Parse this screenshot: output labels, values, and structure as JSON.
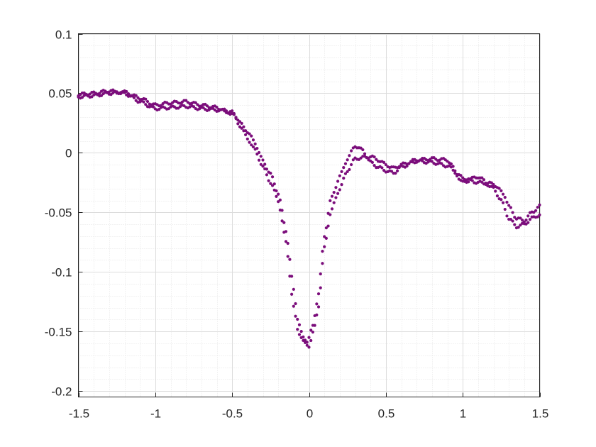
{
  "chart_data": {
    "type": "scatter",
    "title": "",
    "xlabel": "",
    "ylabel": "",
    "xlim": [
      -1.5,
      1.5
    ],
    "ylim": [
      -0.205,
      0.1
    ],
    "x_ticks": [
      -1.5,
      -1,
      -0.5,
      0,
      0.5,
      1,
      1.5
    ],
    "x_tick_labels": [
      "-1.5",
      "-1",
      "-0.5",
      "0",
      "0.5",
      "1",
      "1.5"
    ],
    "y_ticks": [
      0.1,
      0.05,
      0,
      -0.05,
      -0.1,
      -0.15,
      -0.2
    ],
    "y_tick_labels": [
      "0.1",
      "0.05",
      "0",
      "-0.05",
      "-0.1",
      "-0.15",
      "-0.2"
    ],
    "x_minor_step": 0.1,
    "y_minor_step": 0.01,
    "grid": true,
    "marker_color": "#7b0d7b",
    "series": [
      {
        "curves": [
          [
            [
              -1.5,
              0.049
            ],
            [
              -1.4,
              0.05
            ],
            [
              -1.3,
              0.052
            ],
            [
              -1.2,
              0.05
            ],
            [
              -1.1,
              0.043
            ],
            [
              -1.0,
              0.037
            ],
            [
              -0.9,
              0.038
            ],
            [
              -0.8,
              0.039
            ],
            [
              -0.7,
              0.037
            ],
            [
              -0.6,
              0.036
            ],
            [
              -0.5,
              0.034
            ],
            [
              -0.4,
              0.018
            ],
            [
              -0.35,
              0.008
            ],
            [
              -0.3,
              -0.007
            ],
            [
              -0.25,
              -0.018
            ],
            [
              -0.2,
              -0.034
            ],
            [
              -0.15,
              -0.065
            ],
            [
              -0.1,
              -0.115
            ],
            [
              -0.07,
              -0.142
            ],
            [
              -0.04,
              -0.155
            ],
            [
              -0.01,
              -0.158
            ],
            [
              0.02,
              -0.148
            ],
            [
              0.06,
              -0.12
            ],
            [
              0.1,
              -0.07
            ],
            [
              0.14,
              -0.04
            ],
            [
              0.2,
              -0.02
            ],
            [
              0.25,
              -0.005
            ],
            [
              0.3,
              0.006
            ],
            [
              0.35,
              0.002
            ],
            [
              0.4,
              -0.008
            ],
            [
              0.45,
              -0.012
            ],
            [
              0.5,
              -0.015
            ],
            [
              0.55,
              -0.017
            ],
            [
              0.6,
              -0.012
            ],
            [
              0.7,
              -0.007
            ],
            [
              0.8,
              -0.008
            ],
            [
              0.9,
              -0.011
            ],
            [
              1.0,
              -0.021
            ],
            [
              1.1,
              -0.025
            ],
            [
              1.2,
              -0.026
            ],
            [
              1.27,
              -0.035
            ],
            [
              1.3,
              -0.045
            ],
            [
              1.35,
              -0.055
            ],
            [
              1.4,
              -0.057
            ],
            [
              1.45,
              -0.05
            ],
            [
              1.5,
              -0.045
            ]
          ],
          [
            [
              -1.5,
              0.047
            ],
            [
              -1.4,
              0.048
            ],
            [
              -1.3,
              0.05
            ],
            [
              -1.2,
              0.051
            ],
            [
              -1.1,
              0.046
            ],
            [
              -1.0,
              0.04
            ],
            [
              -0.9,
              0.042
            ],
            [
              -0.8,
              0.043
            ],
            [
              -0.7,
              0.04
            ],
            [
              -0.6,
              0.038
            ],
            [
              -0.5,
              0.033
            ],
            [
              -0.45,
              0.023
            ],
            [
              -0.4,
              0.012
            ],
            [
              -0.35,
              0.002
            ],
            [
              -0.3,
              -0.012
            ],
            [
              -0.25,
              -0.025
            ],
            [
              -0.2,
              -0.04
            ],
            [
              -0.15,
              -0.075
            ],
            [
              -0.1,
              -0.13
            ],
            [
              -0.07,
              -0.15
            ],
            [
              -0.03,
              -0.16
            ],
            [
              0.0,
              -0.162
            ],
            [
              0.03,
              -0.15
            ],
            [
              0.06,
              -0.13
            ],
            [
              0.1,
              -0.08
            ],
            [
              0.14,
              -0.05
            ],
            [
              0.2,
              -0.03
            ],
            [
              0.25,
              -0.015
            ],
            [
              0.3,
              -0.005
            ],
            [
              0.35,
              -0.004
            ],
            [
              0.4,
              -0.003
            ],
            [
              0.45,
              -0.006
            ],
            [
              0.5,
              -0.01
            ],
            [
              0.55,
              -0.013
            ],
            [
              0.6,
              -0.01
            ],
            [
              0.7,
              -0.006
            ],
            [
              0.8,
              -0.005
            ],
            [
              0.9,
              -0.006
            ],
            [
              1.0,
              -0.025
            ],
            [
              1.1,
              -0.02
            ],
            [
              1.2,
              -0.03
            ],
            [
              1.25,
              -0.04
            ],
            [
              1.3,
              -0.055
            ],
            [
              1.35,
              -0.062
            ],
            [
              1.4,
              -0.06
            ],
            [
              1.45,
              -0.055
            ],
            [
              1.5,
              -0.052
            ]
          ]
        ]
      }
    ]
  }
}
